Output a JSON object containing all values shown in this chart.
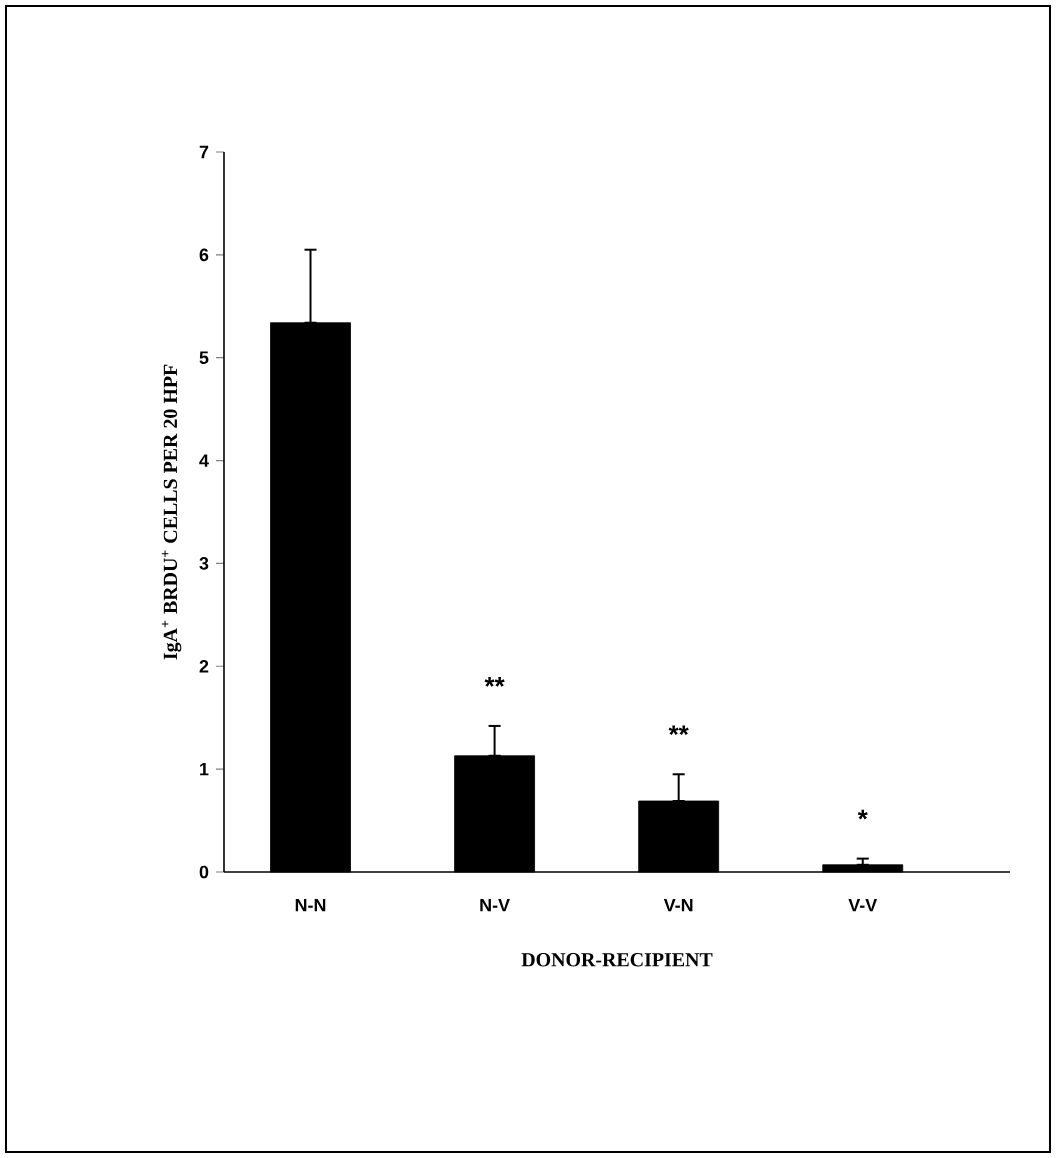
{
  "chart_data": {
    "type": "bar",
    "xlabel": "DONOR-RECIPIENT",
    "ylabel": "IgA$^{+}$ BRDU$^{+}$ CELLS PER 20 HPF",
    "categories": [
      "N-N",
      "N-V",
      "V-N",
      "V-V"
    ],
    "values": [
      5.34,
      1.13,
      0.69,
      0.07
    ],
    "errors": [
      [
        5.34,
        6.05
      ],
      [
        1.13,
        1.42
      ],
      [
        0.69,
        0.95
      ],
      [
        0.07,
        0.13
      ]
    ],
    "color": "#000000",
    "ylim": [
      0,
      7
    ],
    "yticks": [
      0,
      1,
      2,
      3,
      4,
      5,
      6,
      7
    ],
    "annotations": [
      "**",
      "**",
      "*"
    ]
  }
}
